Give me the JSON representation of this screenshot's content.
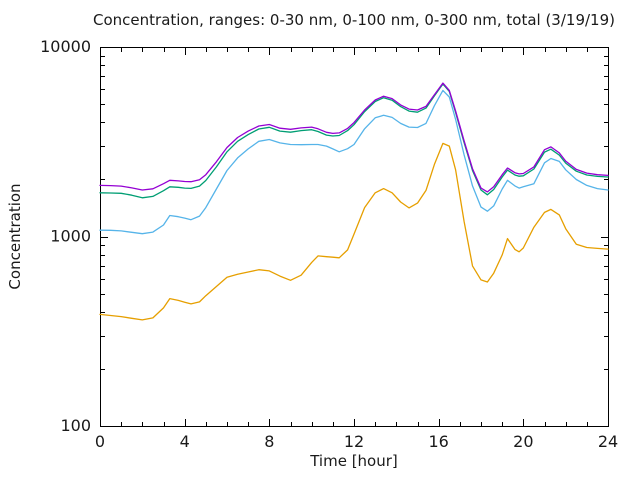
{
  "chart_data": {
    "type": "line",
    "title": "Concentration, ranges: 0-30 nm, 0-100 nm, 0-300 nm, total (3/19/19)",
    "xlabel": "Time [hour]",
    "ylabel": "Concentration",
    "x_scale": "linear",
    "y_scale": "log",
    "xlim": [
      0,
      24
    ],
    "ylim": [
      100,
      10000
    ],
    "x_major_ticks": [
      0,
      4,
      8,
      12,
      16,
      20,
      24
    ],
    "x_minor_step": 1,
    "y_major_ticks": [
      100,
      1000,
      10000
    ],
    "y_minor": "log-decades",
    "grid": false,
    "legend": "none",
    "background_color": "#ffffff",
    "axis_color": "#000000",
    "x": [
      0,
      0.5,
      1,
      1.5,
      2,
      2.5,
      3,
      3.3,
      3.7,
      4,
      4.3,
      4.7,
      5,
      5.5,
      6,
      6.5,
      7,
      7.5,
      8,
      8.5,
      9,
      9.5,
      10,
      10.3,
      10.7,
      11,
      11.3,
      11.7,
      12,
      12.5,
      13,
      13.4,
      13.8,
      14.2,
      14.6,
      15,
      15.4,
      15.8,
      16.2,
      16.5,
      16.8,
      17.2,
      17.6,
      18,
      18.3,
      18.6,
      19,
      19.25,
      19.6,
      19.8,
      20,
      20.5,
      21,
      21.3,
      21.7,
      22,
      22.5,
      23,
      23.5,
      24
    ],
    "series": [
      {
        "key": "range-0-30",
        "name": "0-30 nm",
        "color": "#e69f00",
        "values": [
          388,
          383,
          378,
          370,
          363,
          372,
          420,
          470,
          460,
          450,
          441,
          452,
          487,
          545,
          610,
          632,
          650,
          668,
          658,
          618,
          587,
          625,
          730,
          790,
          782,
          778,
          772,
          850,
          1030,
          1420,
          1700,
          1790,
          1700,
          1520,
          1415,
          1500,
          1750,
          2400,
          3100,
          3000,
          2250,
          1200,
          700,
          590,
          575,
          640,
          800,
          975,
          855,
          830,
          870,
          1120,
          1340,
          1390,
          1300,
          1100,
          910,
          875,
          865,
          858
        ]
      },
      {
        "key": "range-0-100",
        "name": "0-100 nm",
        "color": "#56b4e9",
        "values": [
          1080,
          1078,
          1070,
          1052,
          1035,
          1055,
          1150,
          1290,
          1272,
          1250,
          1226,
          1282,
          1420,
          1780,
          2230,
          2600,
          2900,
          3180,
          3250,
          3120,
          3060,
          3050,
          3060,
          3058,
          3000,
          2900,
          2800,
          2905,
          3060,
          3700,
          4230,
          4360,
          4250,
          3950,
          3780,
          3760,
          3950,
          4900,
          5900,
          5450,
          4150,
          2700,
          1850,
          1430,
          1360,
          1450,
          1780,
          1980,
          1850,
          1800,
          1830,
          1900,
          2450,
          2580,
          2490,
          2250,
          2000,
          1860,
          1790,
          1760
        ]
      },
      {
        "key": "range-0-300",
        "name": "0-300 nm",
        "color": "#009e73",
        "values": [
          1700,
          1697,
          1690,
          1652,
          1600,
          1628,
          1745,
          1830,
          1818,
          1800,
          1795,
          1845,
          1975,
          2330,
          2800,
          3180,
          3450,
          3690,
          3770,
          3600,
          3550,
          3620,
          3660,
          3580,
          3430,
          3390,
          3410,
          3620,
          3890,
          4560,
          5160,
          5400,
          5240,
          4850,
          4590,
          4530,
          4760,
          5520,
          6380,
          5830,
          4520,
          3130,
          2230,
          1760,
          1660,
          1770,
          2060,
          2240,
          2110,
          2080,
          2090,
          2270,
          2790,
          2890,
          2690,
          2440,
          2210,
          2110,
          2075,
          2060
        ]
      },
      {
        "key": "total",
        "name": "total",
        "color": "#9400d3",
        "values": [
          1860,
          1855,
          1845,
          1805,
          1760,
          1785,
          1900,
          1980,
          1965,
          1950,
          1945,
          1995,
          2120,
          2480,
          2950,
          3330,
          3600,
          3830,
          3900,
          3730,
          3680,
          3740,
          3780,
          3700,
          3545,
          3500,
          3520,
          3720,
          3990,
          4650,
          5250,
          5500,
          5340,
          4950,
          4700,
          4650,
          4860,
          5600,
          6450,
          5900,
          4600,
          3200,
          2280,
          1800,
          1720,
          1830,
          2120,
          2300,
          2170,
          2140,
          2150,
          2330,
          2870,
          2970,
          2760,
          2500,
          2260,
          2160,
          2120,
          2100
        ]
      }
    ]
  }
}
